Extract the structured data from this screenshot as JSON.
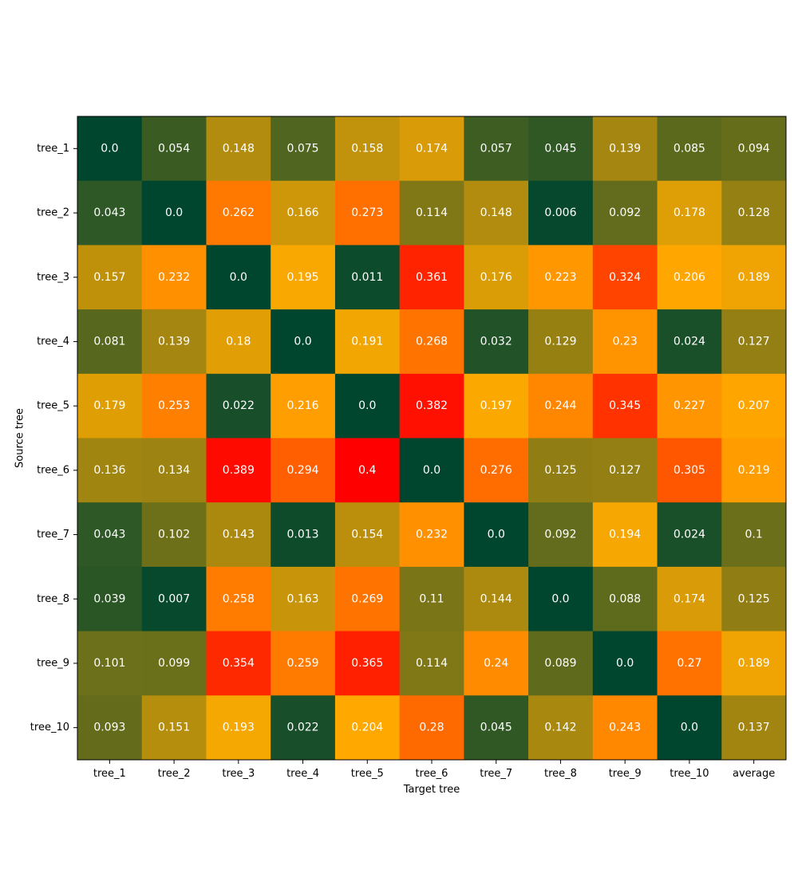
{
  "chart_data": {
    "type": "heatmap",
    "xlabel": "Target tree",
    "ylabel": "Source tree",
    "x_categories": [
      "tree_1",
      "tree_2",
      "tree_3",
      "tree_4",
      "tree_5",
      "tree_6",
      "tree_7",
      "tree_8",
      "tree_9",
      "tree_10",
      "average"
    ],
    "y_categories": [
      "tree_1",
      "tree_2",
      "tree_3",
      "tree_4",
      "tree_5",
      "tree_6",
      "tree_7",
      "tree_8",
      "tree_9",
      "tree_10"
    ],
    "values": [
      [
        "0.0",
        "0.054",
        "0.148",
        "0.075",
        "0.158",
        "0.174",
        "0.057",
        "0.045",
        "0.139",
        "0.085",
        "0.094"
      ],
      [
        "0.043",
        "0.0",
        "0.262",
        "0.166",
        "0.273",
        "0.114",
        "0.148",
        "0.006",
        "0.092",
        "0.178",
        "0.128"
      ],
      [
        "0.157",
        "0.232",
        "0.0",
        "0.195",
        "0.011",
        "0.361",
        "0.176",
        "0.223",
        "0.324",
        "0.206",
        "0.189"
      ],
      [
        "0.081",
        "0.139",
        "0.18",
        "0.0",
        "0.191",
        "0.268",
        "0.032",
        "0.129",
        "0.23",
        "0.024",
        "0.127"
      ],
      [
        "0.179",
        "0.253",
        "0.022",
        "0.216",
        "0.0",
        "0.382",
        "0.197",
        "0.244",
        "0.345",
        "0.227",
        "0.207"
      ],
      [
        "0.136",
        "0.134",
        "0.389",
        "0.294",
        "0.4",
        "0.0",
        "0.276",
        "0.125",
        "0.127",
        "0.305",
        "0.219"
      ],
      [
        "0.043",
        "0.102",
        "0.143",
        "0.013",
        "0.154",
        "0.232",
        "0.0",
        "0.092",
        "0.194",
        "0.024",
        "0.1"
      ],
      [
        "0.039",
        "0.007",
        "0.258",
        "0.163",
        "0.269",
        "0.11",
        "0.144",
        "0.0",
        "0.088",
        "0.174",
        "0.125"
      ],
      [
        "0.101",
        "0.099",
        "0.354",
        "0.259",
        "0.365",
        "0.114",
        "0.24",
        "0.089",
        "0.0",
        "0.27",
        "0.189"
      ],
      [
        "0.093",
        "0.151",
        "0.193",
        "0.022",
        "0.204",
        "0.28",
        "0.045",
        "0.142",
        "0.243",
        "0.0",
        "0.137"
      ]
    ],
    "colormap": {
      "stops": [
        {
          "value": 0.0,
          "color": "#00462e"
        },
        {
          "value": 0.1,
          "color": "#6b6f1a"
        },
        {
          "value": 0.2,
          "color": "#ffab00"
        },
        {
          "value": 0.3,
          "color": "#ff5a00"
        },
        {
          "value": 0.4,
          "color": "#ff0000"
        }
      ]
    },
    "cell_text_color": "#ffffff",
    "grid": false,
    "legend": "none"
  }
}
